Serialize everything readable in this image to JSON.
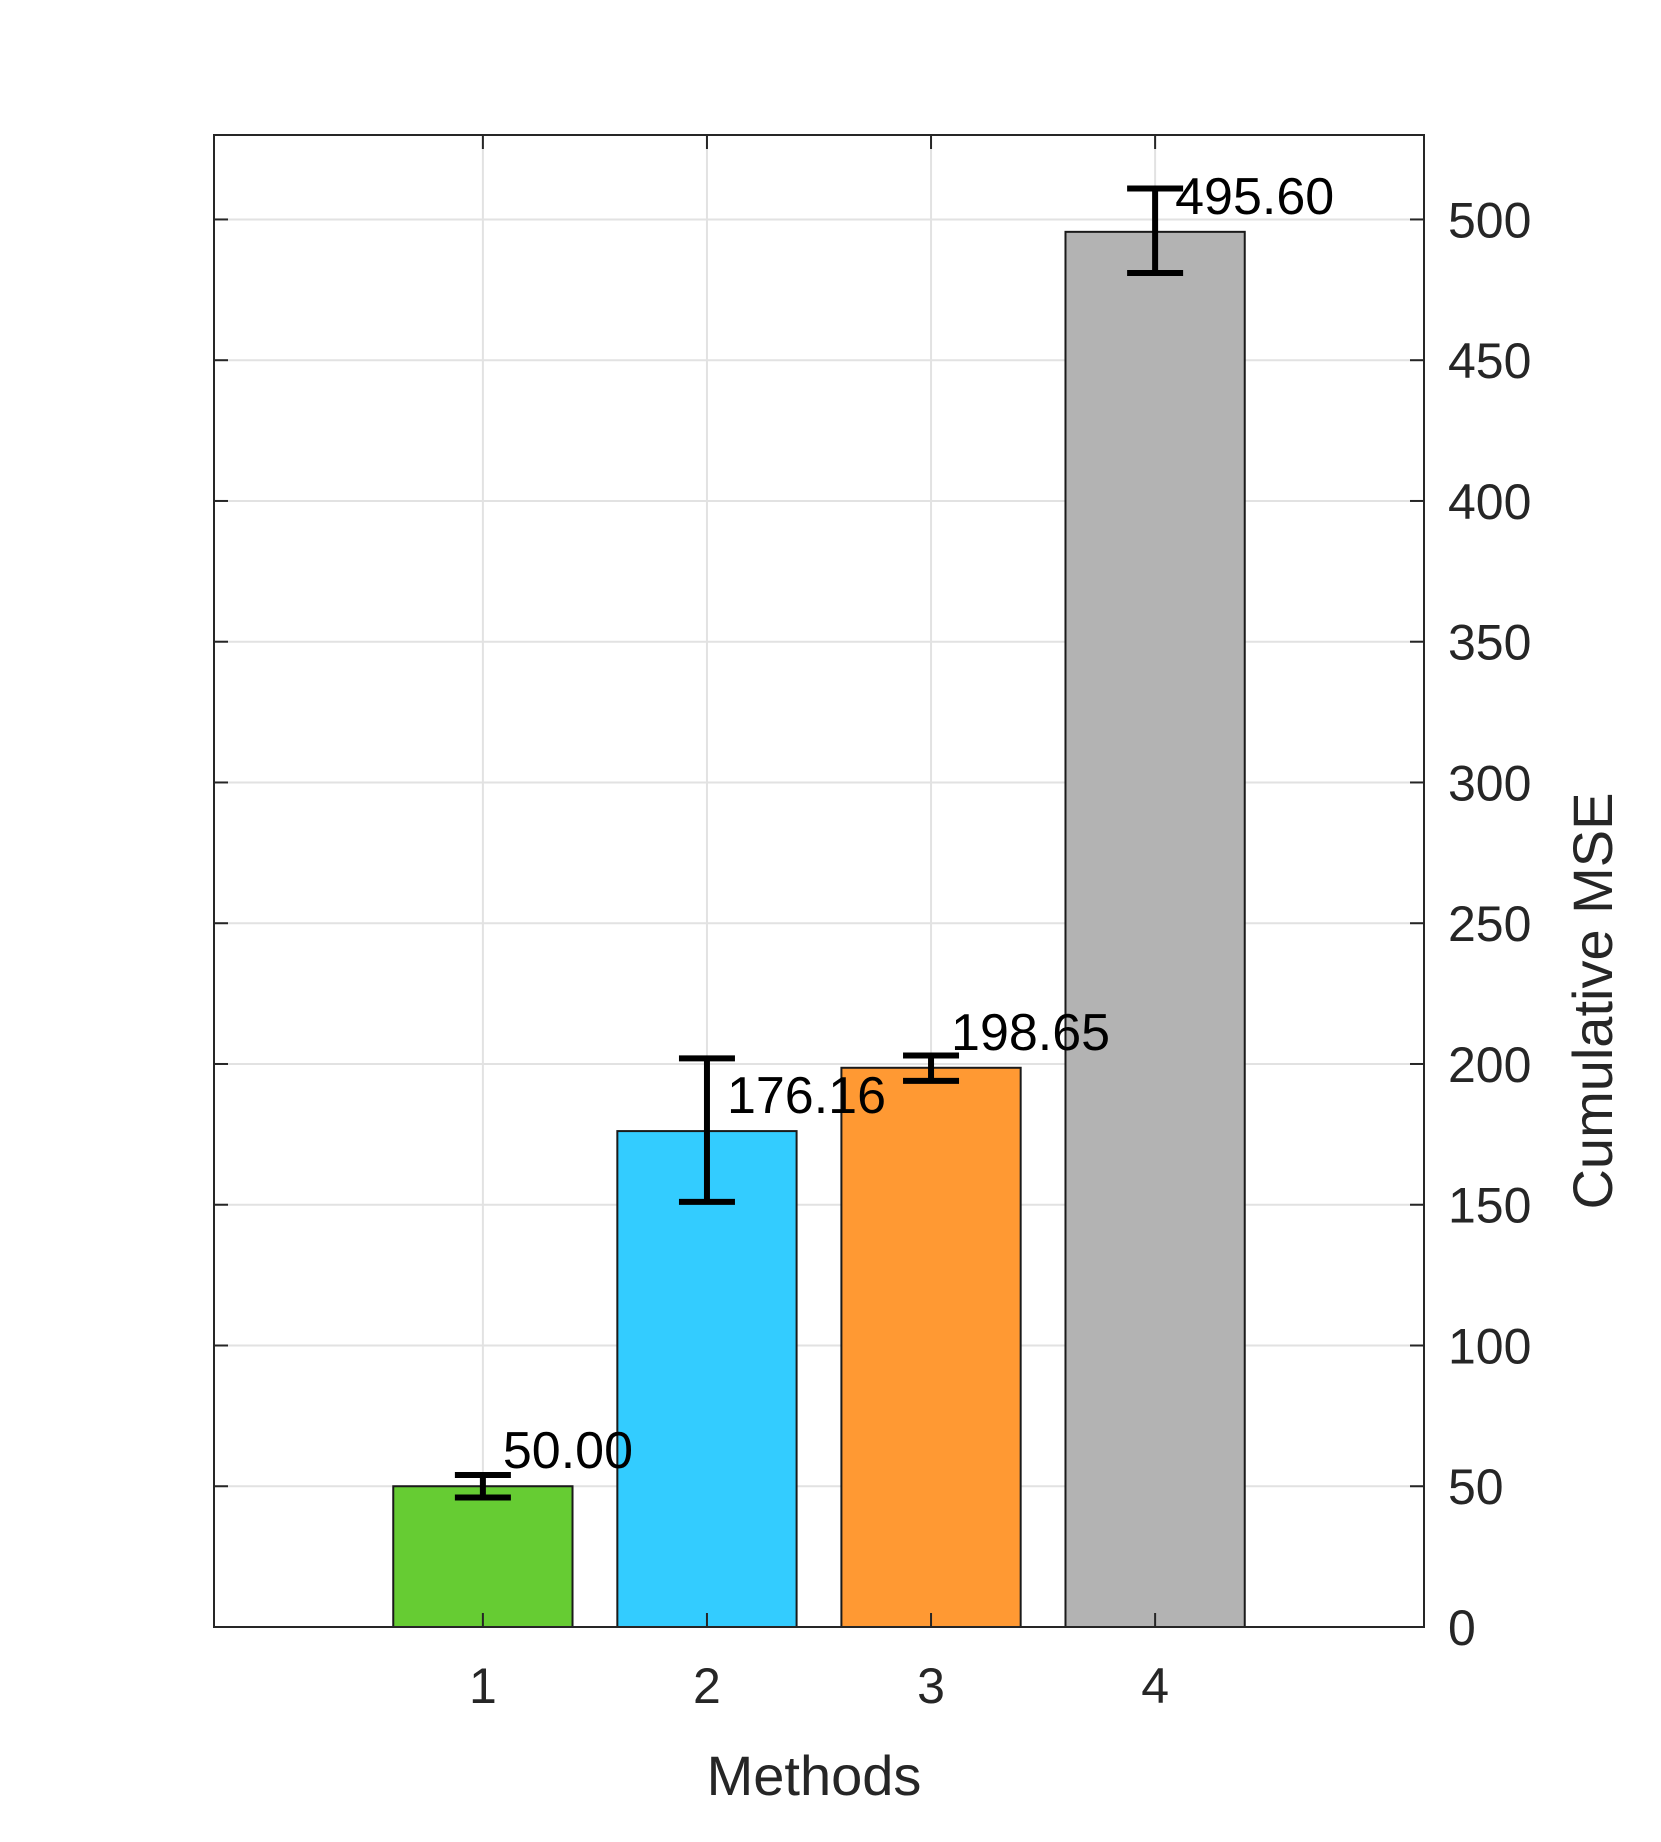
{
  "chart_data": {
    "type": "bar",
    "categories": [
      "1",
      "2",
      "3",
      "4"
    ],
    "values": [
      50.0,
      176.16,
      198.65,
      495.6
    ],
    "value_labels": [
      "50.00",
      "176.16",
      "198.65",
      "495.60"
    ],
    "error_low": [
      46,
      151,
      194,
      481
    ],
    "error_high": [
      54,
      202,
      203,
      511
    ],
    "bar_colors": [
      "#66cc33",
      "#33ccff",
      "#ff9933",
      "#b3b3b3"
    ],
    "xlabel": "Methods",
    "ylabel": "Cumulative MSE",
    "xlim": [
      -0.2,
      5.2
    ],
    "ylim": [
      0,
      530
    ],
    "yticks": [
      0,
      50,
      100,
      150,
      200,
      250,
      300,
      350,
      400,
      450,
      500
    ],
    "y_axis_side": "right",
    "grid": true
  }
}
